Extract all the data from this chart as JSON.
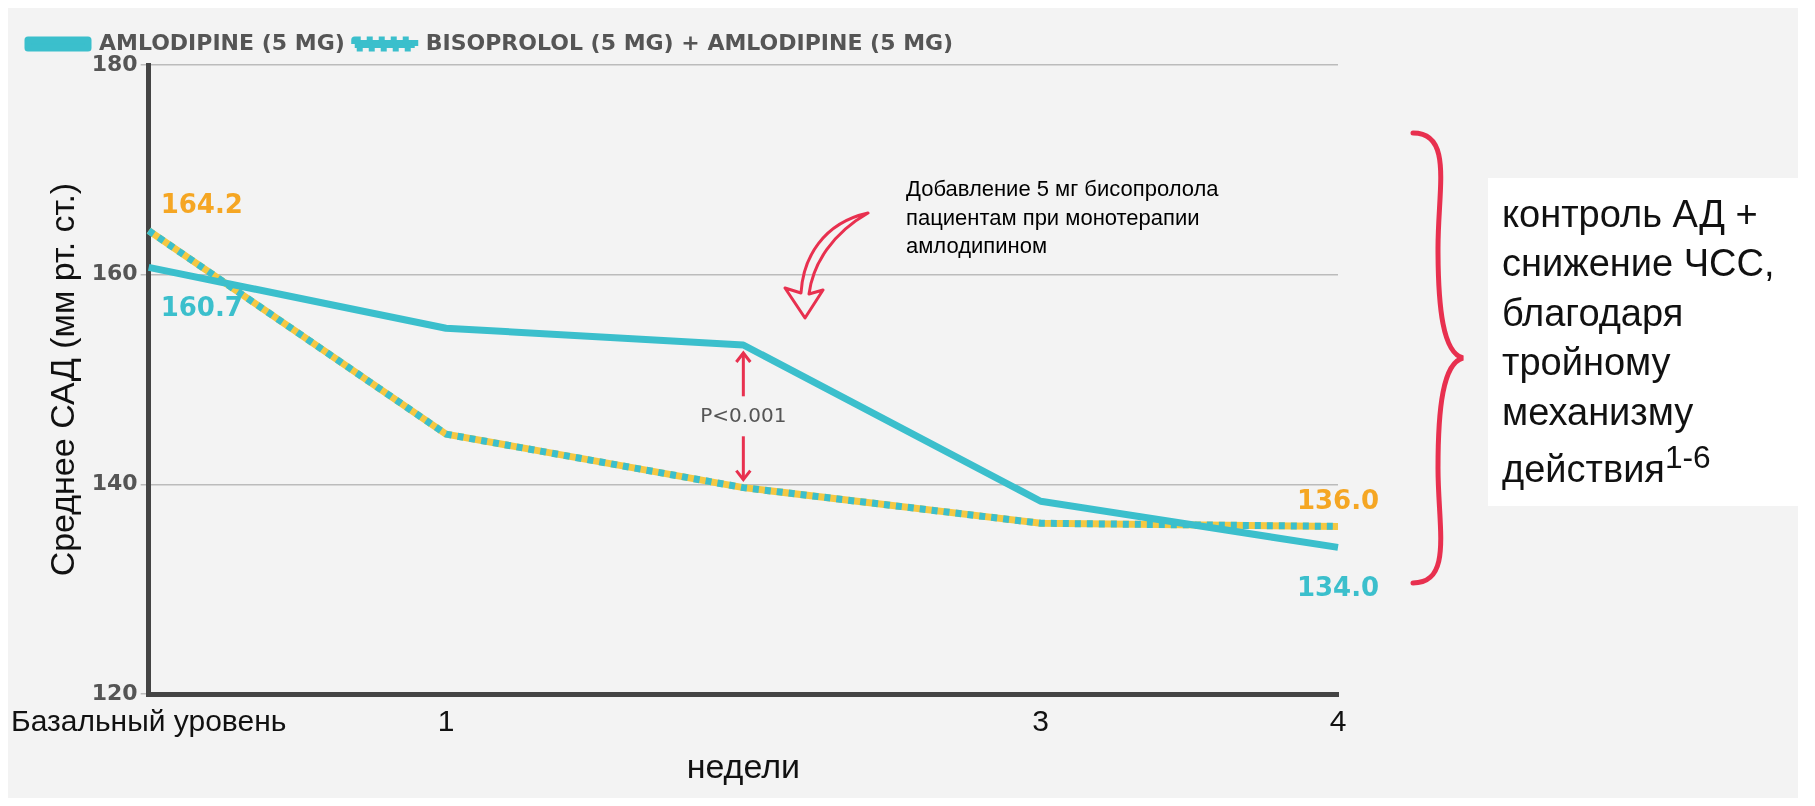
{
  "chart_data": {
    "type": "line",
    "xlabel": "недели",
    "ylabel": "Среднее САД (мм рт. ст.)",
    "categories": [
      "Базальный уровень",
      "1",
      null,
      "3",
      "4"
    ],
    "series": [
      {
        "name": "AMLODIPINE (5 MG)",
        "color": "#3bbfcc",
        "values": [
          160.7,
          154.9,
          153.3,
          138.4,
          134.0
        ],
        "value_labels": [
          "160.7",
          null,
          null,
          null,
          "134.0"
        ]
      },
      {
        "name": "BISOPROLOL (5 MG) + AMLODIPINE (5 MG)",
        "color": "#3bbfcc",
        "line_style": "dotted",
        "values": [
          164.2,
          144.8,
          139.7,
          136.3,
          136.0
        ],
        "value_labels": [
          "164.2",
          null,
          null,
          null,
          "136.0"
        ]
      }
    ],
    "ylim": [
      120,
      180
    ],
    "yticks": [
      120,
      140,
      160,
      180
    ],
    "grid": "y",
    "legend": "top left",
    "marker": "none",
    "annotations": [
      "Добавление 5 мг бисопролола пациентам при монотерапии амлодипином",
      {
        "text": "P<0.001",
        "y": 153.3
      },
      "контроль АД + снижение ЧСС, благодаря тройному механизму действия$^{1-6}$"
    ]
  }
}
